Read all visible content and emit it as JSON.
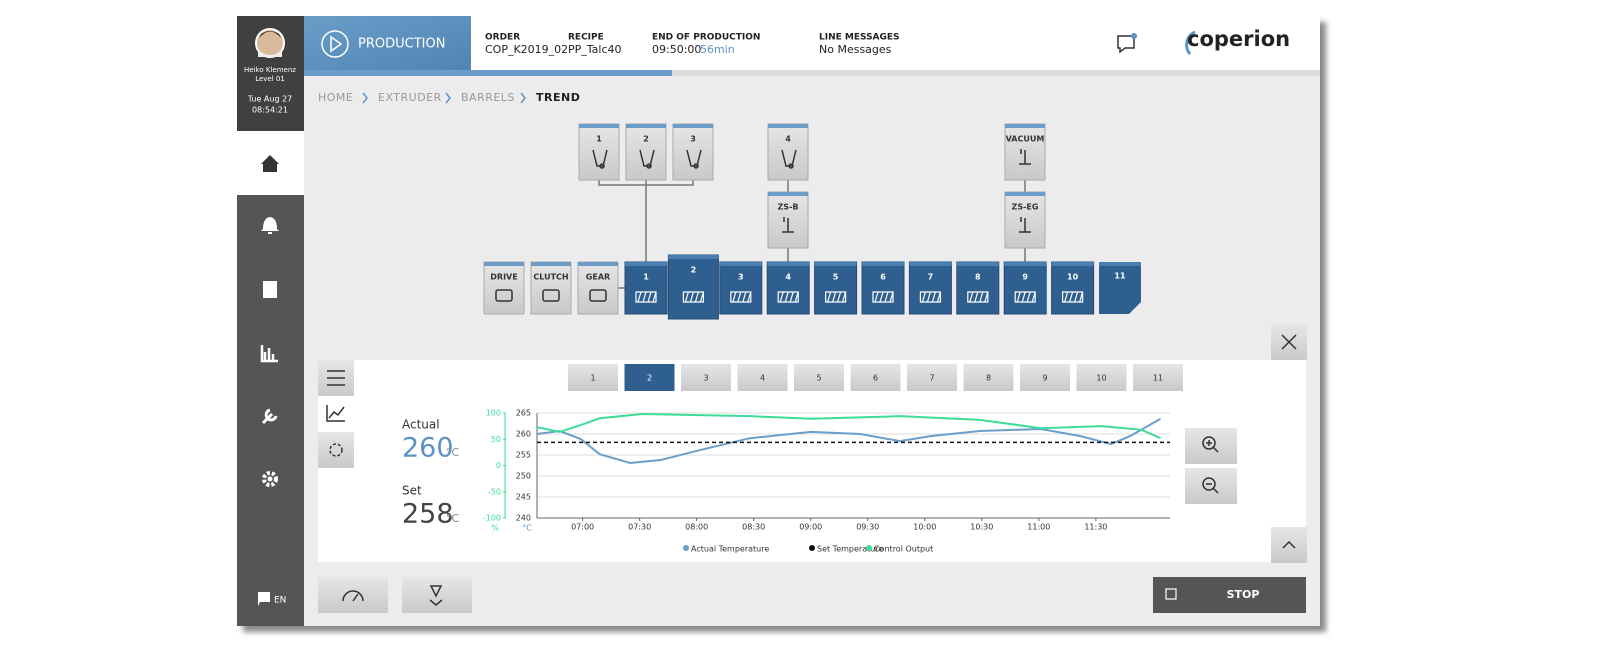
{
  "user": {
    "name": "Heiko Klemenz",
    "level": "Level 01",
    "date": "Tue Aug 27",
    "time": "08:54:21"
  },
  "language": "EN",
  "header": {
    "mode": "PRODUCTION",
    "order_label": "ORDER",
    "order": "COP_K2019_02",
    "recipe_label": "RECIPE",
    "recipe": "PP_Talc40",
    "end_label": "END OF PRODUCTION",
    "end_time": "09:50:00",
    "end_remaining": "56min",
    "messages_label": "LINE MESSAGES",
    "messages": "No Messages",
    "logo": "coperion"
  },
  "breadcrumb": [
    "HOME",
    "EXTRUDER",
    "BARRELS",
    "TREND"
  ],
  "feeders": [
    "1",
    "2",
    "3",
    "4"
  ],
  "side_units": [
    "VACUUM",
    "ZS-B",
    "ZS-EG"
  ],
  "drive_units": [
    "DRIVE",
    "CLUTCH",
    "GEAR"
  ],
  "barrels": [
    "1",
    "2",
    "3",
    "4",
    "5",
    "6",
    "7",
    "8",
    "9",
    "10",
    "11"
  ],
  "tabs": [
    "1",
    "2",
    "3",
    "4",
    "5",
    "6",
    "7",
    "8",
    "9",
    "10",
    "11"
  ],
  "readout": {
    "actual_label": "Actual",
    "actual": 260,
    "unit": "°C",
    "set_label": "Set",
    "set": 258
  },
  "stop": "STOP",
  "chart_data": {
    "type": "line",
    "y_unit": "°C",
    "y2_unit": "%",
    "xlim": [
      396,
      729
    ],
    "xticks": [
      {
        "value": 420,
        "label": "07:00"
      },
      {
        "value": 450,
        "label": "07:30"
      },
      {
        "value": 480,
        "label": "08:00"
      },
      {
        "value": 510,
        "label": "08:30"
      },
      {
        "value": 540,
        "label": "09:00"
      },
      {
        "value": 570,
        "label": "09:30"
      },
      {
        "value": 600,
        "label": "10:00"
      },
      {
        "value": 630,
        "label": "10:30"
      },
      {
        "value": 660,
        "label": "11:00"
      },
      {
        "value": 690,
        "label": "11:30"
      }
    ],
    "ylim": [
      240,
      265
    ],
    "yticks": [
      240,
      245,
      250,
      255,
      260,
      265
    ],
    "y2lim": [
      -100,
      100
    ],
    "y2ticks": [
      -100,
      -50,
      0,
      50,
      100
    ],
    "grid": true,
    "series": [
      {
        "name": "Actual Temperature",
        "color": "#6a9fcc",
        "x": [
          396,
          408,
          419,
          429,
          445,
          461,
          482,
          508,
          540,
          566,
          587,
          603,
          629,
          661,
          682,
          698,
          708,
          724
        ],
        "values": [
          260,
          260.7,
          258.8,
          255.2,
          253.1,
          253.8,
          256.2,
          259,
          260.5,
          260,
          258.3,
          259.5,
          260.7,
          261.2,
          259.5,
          257.6,
          259.5,
          263.6
        ]
      },
      {
        "name": "Set Temperature",
        "color": "#111111",
        "dash": true,
        "x": [
          396,
          729
        ],
        "values": [
          258,
          258
        ]
      },
      {
        "name": "Control Output",
        "color": "#3ddc97",
        "axis": "y2",
        "x": [
          396,
          408,
          419,
          429,
          451,
          508,
          540,
          587,
          629,
          661,
          693,
          714,
          724
        ],
        "values": [
          73,
          64,
          77,
          90,
          98,
          94,
          89,
          94,
          87,
          71,
          75,
          68,
          52
        ]
      }
    ]
  }
}
